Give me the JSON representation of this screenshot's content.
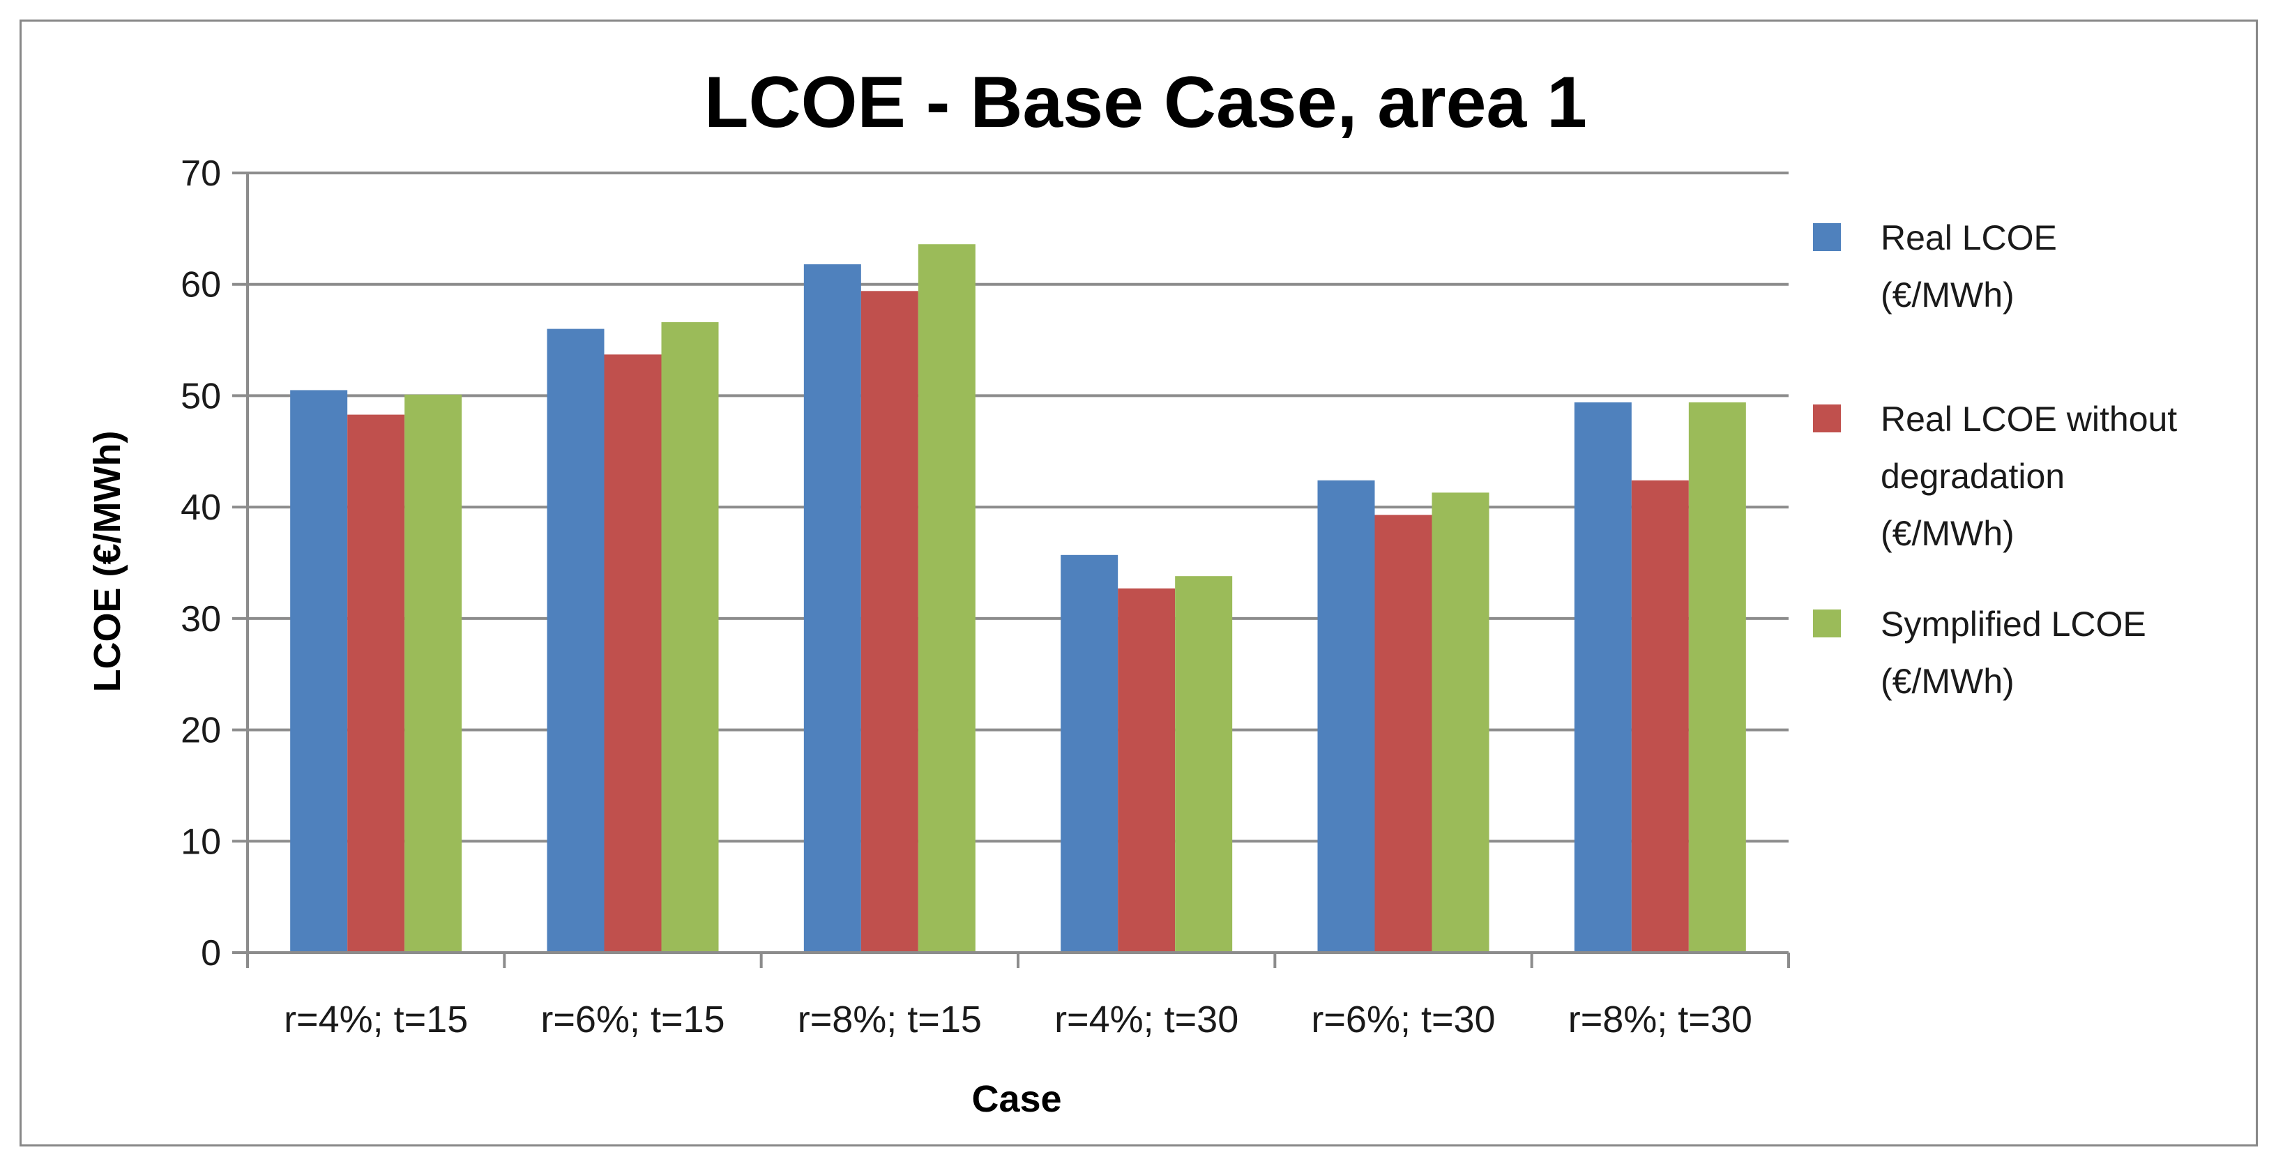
{
  "chart_data": {
    "type": "bar",
    "title": "LCOE - Base Case, area 1",
    "xlabel": "Case",
    "ylabel": "LCOE (€/MWh)",
    "ylim": [
      0,
      70
    ],
    "yticks": [
      0,
      10,
      20,
      30,
      40,
      50,
      60,
      70
    ],
    "grid": true,
    "legend_position": "right",
    "categories": [
      "r=4%; t=15",
      "r=6%; t=15",
      "r=8%; t=15",
      "r=4%; t=30",
      "r=6%; t=30",
      "r=8%; t=30"
    ],
    "series": [
      {
        "name": "Real LCOE (€/MWh)",
        "legend_lines": [
          "Real LCOE",
          "(€/MWh)"
        ],
        "color": "#4F81BD",
        "values": [
          50.5,
          56.0,
          61.8,
          35.7,
          42.4,
          49.4
        ]
      },
      {
        "name": "Real LCOE without degradation (€/MWh)",
        "legend_lines": [
          "Real LCOE without",
          "degradation",
          "(€/MWh)"
        ],
        "color": "#C0504D",
        "values": [
          48.3,
          53.7,
          59.4,
          32.7,
          39.3,
          42.4
        ]
      },
      {
        "name": "Symplified LCOE (€/MWh)",
        "legend_lines": [
          "Symplified LCOE",
          "(€/MWh)"
        ],
        "color": "#9BBB59",
        "values": [
          50.1,
          56.6,
          63.6,
          33.8,
          41.3,
          49.4
        ]
      }
    ]
  }
}
